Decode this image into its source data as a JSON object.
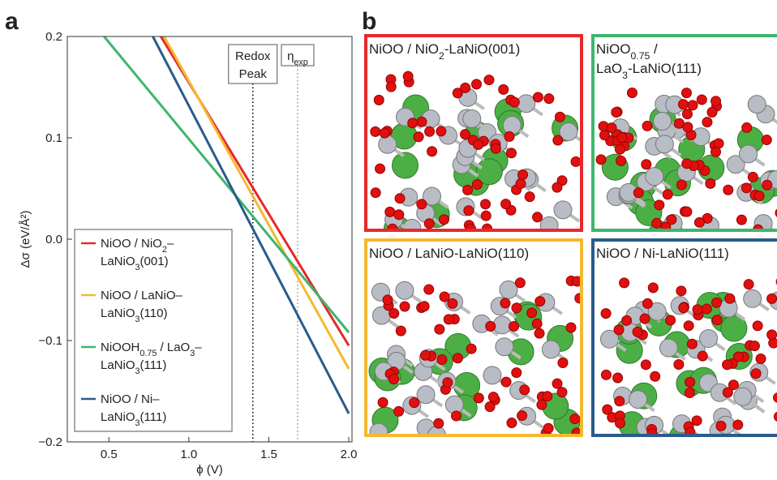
{
  "chart_data": {
    "type": "line",
    "panel_label": "a",
    "x_label": "ϕ (V)",
    "y_label": "Δσ (eV/Å²)",
    "xlim": [
      0.24,
      2.02
    ],
    "ylim": [
      -0.2,
      0.2
    ],
    "xticks": [
      0.5,
      {
        "value": 1.0,
        "label": "1.0"
      },
      1.5,
      {
        "value": 2.0,
        "label": "2.0"
      }
    ],
    "yticks": [
      {
        "value": -0.2,
        "label": "−0.2"
      },
      {
        "value": -0.1,
        "label": "−0.1"
      },
      {
        "value": 0.0,
        "label": "0.0"
      },
      {
        "value": 0.1,
        "label": "0.1"
      },
      {
        "value": 0.2,
        "label": "0.2"
      }
    ],
    "series": [
      {
        "name": [
          [
            "NiOO / NiO",
            "2",
            "–"
          ],
          [
            "LaNiO",
            "3",
            "(001)"
          ]
        ],
        "color": "#e8282b",
        "x": [
          0.825,
          2.0
        ],
        "y": [
          0.2,
          -0.105
        ]
      },
      {
        "name": [
          [
            "NiOO / LaNiO–"
          ],
          [
            "LaNiO",
            "3",
            "(110)"
          ]
        ],
        "color": "#f5b82e",
        "x": [
          0.845,
          2.0
        ],
        "y": [
          0.2,
          -0.128
        ]
      },
      {
        "name": [
          [
            "NiOOH",
            "0.75",
            " / LaO",
            "3",
            "–"
          ],
          [
            "LaNiO",
            "3",
            "(111)"
          ]
        ],
        "color": "#3db66e",
        "x": [
          0.47,
          2.0
        ],
        "y": [
          0.2,
          -0.092
        ]
      },
      {
        "name": [
          [
            "NiOO / Ni–"
          ],
          [
            "LaNiO",
            "3",
            "(111)"
          ]
        ],
        "color": "#2a5b8c",
        "x": [
          0.775,
          2.0
        ],
        "y": [
          0.2,
          -0.172
        ]
      }
    ],
    "annotations": [
      {
        "x": 1.4,
        "text": [
          [
            "Redox"
          ],
          [
            "Peak"
          ]
        ],
        "color": "#000000"
      },
      {
        "x": 1.68,
        "text": [
          [
            "η",
            "exp"
          ]
        ],
        "color": "#999999"
      }
    ]
  },
  "panel_b": {
    "label": "b",
    "structures": [
      {
        "title": [
          [
            "NiOO / NiO",
            "2",
            "-LaNiO(001)"
          ]
        ],
        "color": "#e8282b"
      },
      {
        "title": [
          [
            "NiOO",
            "0.75",
            " /"
          ],
          [
            "LaO",
            "3",
            "-LaNiO(111)"
          ]
        ],
        "color": "#3db66e"
      },
      {
        "title": [
          [
            "NiOO / LaNiO-LaNiO(110)"
          ]
        ],
        "color": "#f5b82e"
      },
      {
        "title": [
          [
            "NiOO / Ni-LaNiO(111)"
          ]
        ],
        "color": "#2a5b8c"
      }
    ]
  }
}
